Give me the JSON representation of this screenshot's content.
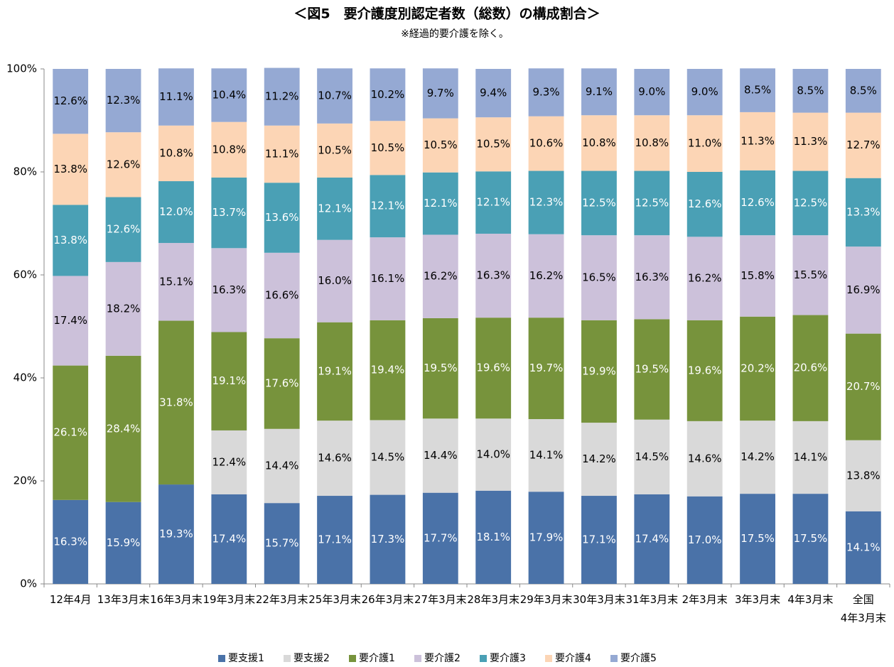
{
  "chart_data": {
    "type": "stacked_bar_percent",
    "title": "＜図5　要介護度別認定者数（総数）の構成割合＞",
    "subtitle": "※経過的要介護を除く。",
    "categories": [
      "12年4月",
      "13年3月末",
      "16年3月末",
      "19年3月末",
      "22年3月末",
      "25年3月末",
      "26年3月末",
      "27年3月末",
      "28年3月末",
      "29年3月末",
      "30年3月末",
      "31年3月末",
      "2年3月末",
      "3年3月末",
      "4年3月末",
      "全国\n4年3月末"
    ],
    "series": [
      {
        "name": "要支援1",
        "color": "#4a72a8",
        "values": [
          16.3,
          15.9,
          19.3,
          17.4,
          15.7,
          17.1,
          17.3,
          17.7,
          18.1,
          17.9,
          17.1,
          17.4,
          17.0,
          17.5,
          17.5,
          14.1
        ],
        "value_labels": [
          "16.3%",
          "15.9%",
          "19.3%",
          "17.4%",
          "15.7%",
          "17.1%",
          "17.3%",
          "17.7%",
          "18.1%",
          "17.9%",
          "17.1%",
          "17.4%",
          "17.0%",
          "17.5%",
          "17.5%",
          "14.1%"
        ]
      },
      {
        "name": "要支援2",
        "color": "#d9d9d9",
        "values": [
          null,
          null,
          null,
          12.4,
          14.4,
          14.6,
          14.5,
          14.4,
          14.0,
          14.1,
          14.2,
          14.5,
          14.6,
          14.2,
          14.1,
          13.8
        ],
        "value_labels": [
          null,
          null,
          null,
          "12.4%",
          "14.4%",
          "14.6%",
          "14.5%",
          "14.4%",
          "14.0%",
          "14.1%",
          "14.2%",
          "14.5%",
          "14.6%",
          "14.2%",
          "14.1%",
          "13.8%"
        ]
      },
      {
        "name": "要介護1",
        "color": "#77933c",
        "values": [
          26.1,
          28.4,
          31.8,
          19.1,
          17.6,
          19.1,
          19.4,
          19.5,
          19.6,
          19.7,
          19.9,
          19.5,
          19.6,
          20.2,
          20.6,
          20.7
        ],
        "value_labels": [
          "26.1%",
          "28.4%",
          "31.8%",
          "19.1%",
          "17.6%",
          "19.1%",
          "19.4%",
          "19.5%",
          "19.6%",
          "19.7%",
          "19.9%",
          "19.5%",
          "19.6%",
          "20.2%",
          "20.6%",
          "20.7%"
        ]
      },
      {
        "name": "要介護2",
        "color": "#ccc1da",
        "values": [
          17.4,
          18.2,
          15.1,
          16.3,
          16.6,
          16.0,
          16.1,
          16.2,
          16.3,
          16.2,
          16.5,
          16.3,
          16.2,
          15.8,
          15.5,
          16.9
        ],
        "value_labels": [
          "17.4%",
          "18.2%",
          "15.1%",
          "16.3%",
          "16.6%",
          "16.0%",
          "16.1%",
          "16.2%",
          "16.3%",
          "16.2%",
          "16.5%",
          "16.3%",
          "16.2%",
          "15.8%",
          "15.5%",
          "16.9%"
        ]
      },
      {
        "name": "要介護3",
        "color": "#4aa0b5",
        "values": [
          13.8,
          12.6,
          12.0,
          13.7,
          13.6,
          12.1,
          12.1,
          12.1,
          12.1,
          12.3,
          12.5,
          12.5,
          12.6,
          12.6,
          12.5,
          13.3
        ],
        "value_labels": [
          "13.8%",
          "12.6%",
          "12.0%",
          "13.7%",
          "13.6%",
          "12.1%",
          "12.1%",
          "12.1%",
          "12.1%",
          "12.3%",
          "12.5%",
          "12.5%",
          "12.6%",
          "12.6%",
          "12.5%",
          "13.3%"
        ]
      },
      {
        "name": "要介護4",
        "color": "#fcd5b5",
        "values": [
          13.8,
          12.6,
          10.8,
          10.8,
          11.1,
          10.5,
          10.5,
          10.5,
          10.5,
          10.6,
          10.8,
          10.8,
          11.0,
          11.3,
          11.3,
          12.7
        ],
        "value_labels": [
          "13.8%",
          "12.6%",
          "10.8%",
          "10.8%",
          "11.1%",
          "10.5%",
          "10.5%",
          "10.5%",
          "10.5%",
          "10.6%",
          "10.8%",
          "10.8%",
          "11.0%",
          "11.3%",
          "11.3%",
          "12.7%"
        ]
      },
      {
        "name": "要介護5",
        "color": "#95a9d3",
        "values": [
          12.6,
          12.3,
          11.1,
          10.4,
          11.2,
          10.7,
          10.2,
          9.7,
          9.4,
          9.3,
          9.1,
          9.0,
          9.0,
          8.5,
          8.5,
          8.5
        ],
        "value_labels": [
          "12.6%",
          "12.3%",
          "11.1%",
          "10.4%",
          "11.2%",
          "10.7%",
          "10.2%",
          "9.7%",
          "9.4%",
          "9.3%",
          "9.1%",
          "9.0%",
          "9.0%",
          "8.5%",
          "8.5%",
          "8.5%"
        ]
      }
    ],
    "ylim": [
      0,
      100
    ],
    "yticks": [
      {
        "value": 0,
        "label": "0%"
      },
      {
        "value": 20,
        "label": "20%"
      },
      {
        "value": 40,
        "label": "40%"
      },
      {
        "value": 60,
        "label": "60%"
      },
      {
        "value": 80,
        "label": "80%"
      },
      {
        "value": 100,
        "label": "100%"
      }
    ],
    "legend": "bottom"
  }
}
